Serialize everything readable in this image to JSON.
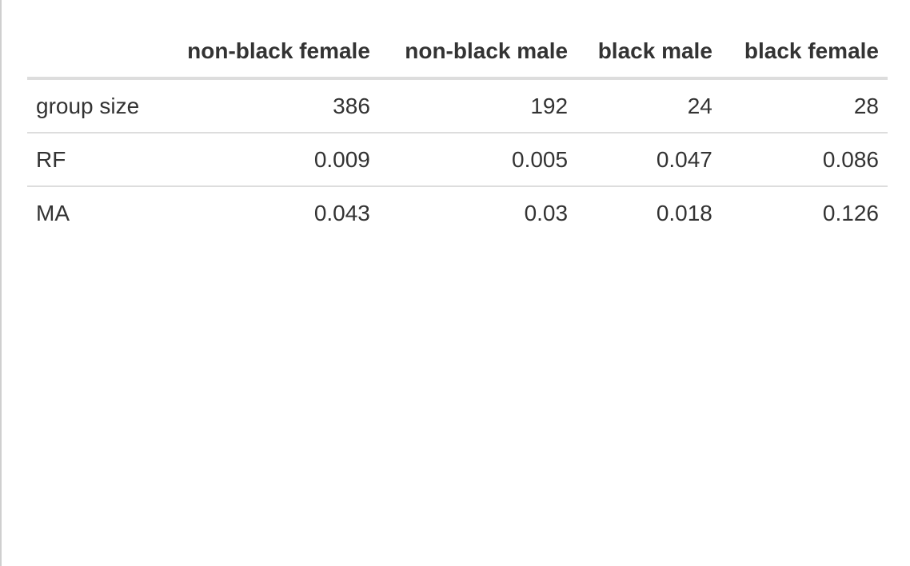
{
  "table": {
    "columns": [
      "",
      "non-black female",
      "non-black male",
      "black male",
      "black female"
    ],
    "rows": [
      {
        "label": "group size",
        "values": [
          "386",
          "192",
          "24",
          "28"
        ]
      },
      {
        "label": "RF",
        "values": [
          "0.009",
          "0.005",
          "0.047",
          "0.086"
        ]
      },
      {
        "label": "MA",
        "values": [
          "0.043",
          "0.03",
          "0.018",
          "0.126"
        ]
      }
    ]
  },
  "chart_data": {
    "type": "table",
    "columns": [
      "non-black female",
      "non-black male",
      "black male",
      "black female"
    ],
    "rows": [
      "group size",
      "RF",
      "MA"
    ],
    "values": [
      [
        386,
        192,
        24,
        28
      ],
      [
        0.009,
        0.005,
        0.047,
        0.086
      ],
      [
        0.043,
        0.03,
        0.018,
        0.126
      ]
    ]
  }
}
